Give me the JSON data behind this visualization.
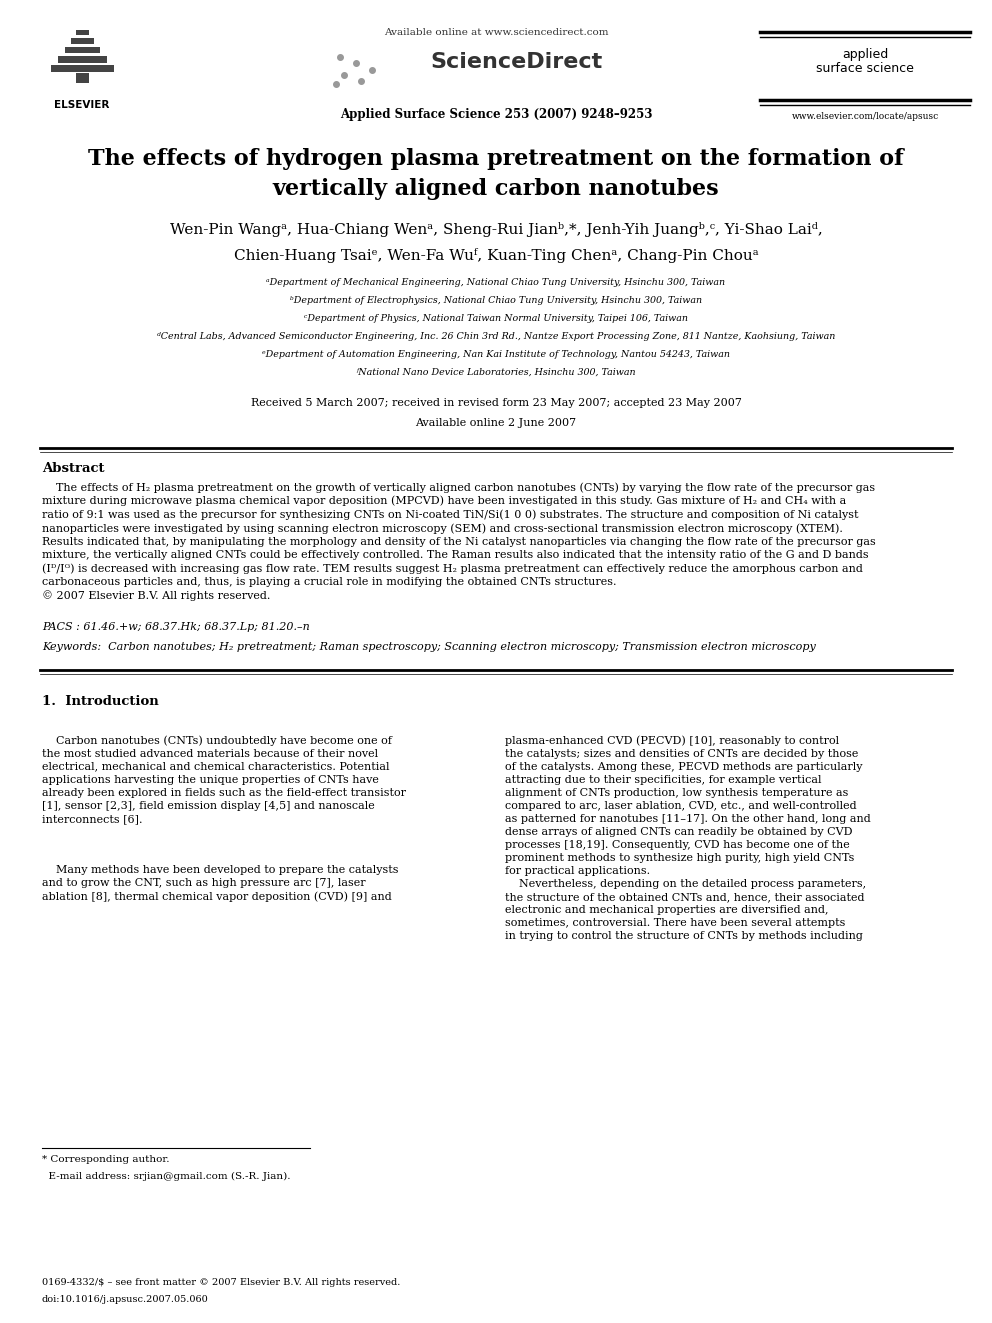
{
  "page_width": 9.92,
  "page_height": 13.23,
  "dpi": 100,
  "bg_color": "#ffffff",
  "header_avail_online": "Available online at www.sciencedirect.com",
  "header_journal": "Applied Surface Science 253 (2007) 9248–9253",
  "header_journal_name1": "applied",
  "header_journal_name2": "surface science",
  "header_url": "www.elsevier.com/locate/apsusc",
  "elsevier_label": "ELSEVIER",
  "title_line1": "The effects of hydrogen plasma pretreatment on the formation of",
  "title_line2": "vertically aligned carbon nanotubes",
  "author_line1": "Wen-Pin Wangᵃ, Hua-Chiang Wenᵃ, Sheng-Rui Jianᵇ,*, Jenh-Yih Juangᵇ,ᶜ, Yi-Shao Laiᵈ,",
  "author_line2": "Chien-Huang Tsaiᵉ, Wen-Fa Wuᶠ, Kuan-Ting Chenᵃ, Chang-Pin Chouᵃ",
  "aff1": "ᵃDepartment of Mechanical Engineering, National Chiao Tung University, Hsinchu 300, Taiwan",
  "aff2": "ᵇDepartment of Electrophysics, National Chiao Tung University, Hsinchu 300, Taiwan",
  "aff3": "ᶜDepartment of Physics, National Taiwan Normal University, Taipei 106, Taiwan",
  "aff4": "ᵈCentral Labs, Advanced Semiconductor Engineering, Inc. 26 Chin 3rd Rd., Nantze Export Processing Zone, 811 Nantze, Kaohsiung, Taiwan",
  "aff5": "ᵉDepartment of Automation Engineering, Nan Kai Institute of Technology, Nantou 54243, Taiwan",
  "aff6": "ᶠNational Nano Device Laboratories, Hsinchu 300, Taiwan",
  "received": "Received 5 March 2007; received in revised form 23 May 2007; accepted 23 May 2007",
  "available_online2": "Available online 2 June 2007",
  "abstract_title": "Abstract",
  "abstract_body": "    The effects of H₂ plasma pretreatment on the growth of vertically aligned carbon nanotubes (CNTs) by varying the flow rate of the precursor gas mixture during microwave plasma chemical vapor deposition (MPCVD) have been investigated in this study. Gas mixture of H₂ and CH₄ with a ratio of 9:1 was used as the precursor for synthesizing CNTs on Ni-coated TiN/Si(1 0 0) substrates. The structure and composition of Ni catalyst nanoparticles were investigated by using scanning electron microscopy (SEM) and cross-sectional transmission electron microscopy (XTEM). Results indicated that, by manipulating the morphology and density of the Ni catalyst nanoparticles via changing the flow rate of the precursor gas mixture, the vertically aligned CNTs could be effectively controlled. The Raman results also indicated that the intensity ratio of the G and D bands (Iᴰ/Iᴳ) is decreased with increasing gas flow rate. TEM results suggest H₂ plasma pretreatment can effectively reduce the amorphous carbon and carbonaceous particles and, thus, is playing a crucial role in modifying the obtained CNTs structures.",
  "abstract_copy": "© 2007 Elsevier B.V. All rights reserved.",
  "pacs": "PACS : 61.46.+w; 68.37.Hk; 68.37.Lp; 81.20.–n",
  "keywords": "Keywords:  Carbon nanotubes; H₂ pretreatment; Raman spectroscopy; Scanning electron microscopy; Transmission electron microscopy",
  "intro_heading": "1.  Introduction",
  "col1_para1": "    Carbon nanotubes (CNTs) undoubtedly have become one of the most studied advanced materials because of their novel electrical, mechanical and chemical characteristics. Potential applications harvesting the unique properties of CNTs have already been explored in fields such as the field-effect transistor [1], sensor [2,3], field emission display [4,5] and nanoscale interconnects [6].",
  "col1_para2": "    Many methods have been developed to prepare the catalysts and to grow the CNT, such as high pressure arc [7], laser ablation [8], thermal chemical vapor deposition (CVD) [9] and",
  "col2_text": "plasma-enhanced CVD (PECVD) [10], reasonably to control the catalysts; sizes and densities of CNTs are decided by those of the catalysts. Among these, PECVD methods are particularly attracting due to their specificities, for example vertical alignment of CNTs production, low synthesis temperature as compared to arc, laser ablation, CVD, etc., and well-controlled as patterned for nanotubes [11–17]. On the other hand, long and dense arrays of aligned CNTs can readily be obtained by CVD processes [18,19]. Consequently, CVD has become one of the prominent methods to synthesize high purity, high yield CNTs for practical applications.\n    Nevertheless, depending on the detailed process parameters, the structure of the obtained CNTs and, hence, their associated electronic and mechanical properties are diversified and, sometimes, controversial. There have been several attempts in trying to control the structure of CNTs by methods including",
  "footnote1": "* Corresponding author.",
  "footnote2": "  E-mail address: srjian@gmail.com (S.-R. Jian).",
  "footer1": "0169-4332/$ – see front matter © 2007 Elsevier B.V. All rights reserved.",
  "footer2": "doi:10.1016/j.apsusc.2007.05.060"
}
